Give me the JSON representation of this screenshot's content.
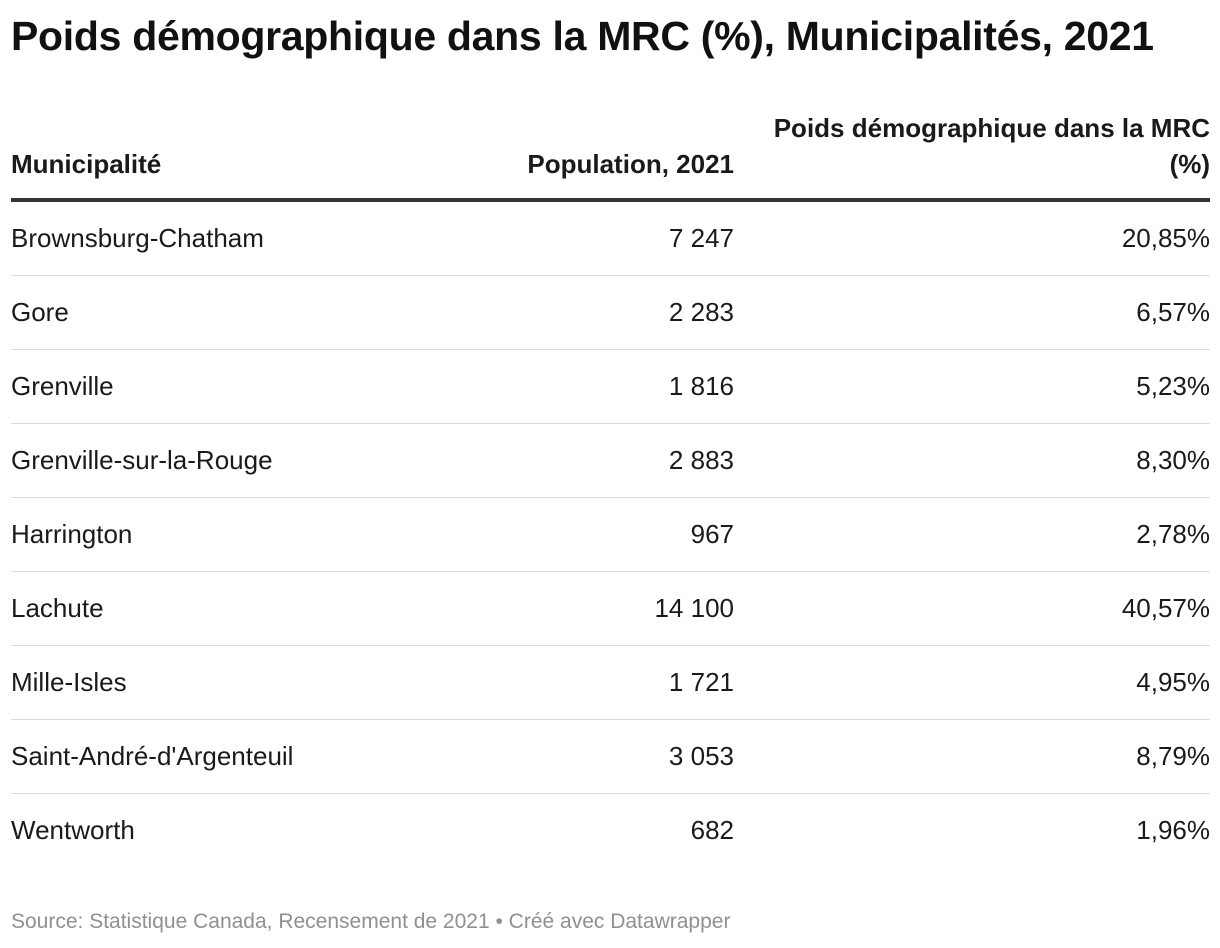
{
  "chart_data": {
    "type": "table",
    "title": "Poids démographique dans la MRC (%), Municipalités, 2021",
    "columns": [
      "Municipalité",
      "Population, 2021",
      "Poids démographique dans la MRC (%)"
    ],
    "rows": [
      {
        "municipality": "Brownsburg-Chatham",
        "population": "7 247",
        "weight": "20,85%"
      },
      {
        "municipality": "Gore",
        "population": "2 283",
        "weight": "6,57%"
      },
      {
        "municipality": "Grenville",
        "population": "1 816",
        "weight": "5,23%"
      },
      {
        "municipality": "Grenville-sur-la-Rouge",
        "population": "2 883",
        "weight": "8,30%"
      },
      {
        "municipality": "Harrington",
        "population": "967",
        "weight": "2,78%"
      },
      {
        "municipality": "Lachute",
        "population": "14 100",
        "weight": "40,57%"
      },
      {
        "municipality": "Mille-Isles",
        "population": "1 721",
        "weight": "4,95%"
      },
      {
        "municipality": "Saint-André-d'Argenteuil",
        "population": "3 053",
        "weight": "8,79%"
      },
      {
        "municipality": "Wentworth",
        "population": "682",
        "weight": "1,96%"
      }
    ],
    "source": "Source: Statistique Canada, Recensement de 2021 • Créé avec Datawrapper"
  }
}
